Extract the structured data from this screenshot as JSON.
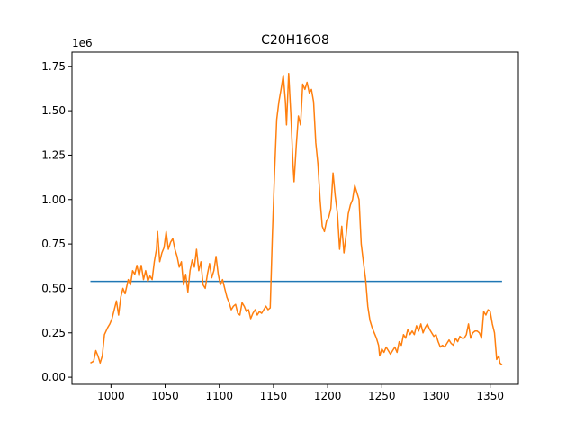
{
  "chart_data": {
    "type": "line",
    "title": "C20H16O8",
    "xlabel": "",
    "ylabel": "",
    "offset_label": "1e6",
    "xlim": [
      964,
      1376
    ],
    "ylim": [
      -0.04,
      1.83
    ],
    "y_scale_multiplier": 1000000,
    "grid": false,
    "x_ticks": [
      {
        "value": 1000,
        "label": "1000"
      },
      {
        "value": 1050,
        "label": "1050"
      },
      {
        "value": 1100,
        "label": "1100"
      },
      {
        "value": 1150,
        "label": "1150"
      },
      {
        "value": 1200,
        "label": "1200"
      },
      {
        "value": 1250,
        "label": "1250"
      },
      {
        "value": 1300,
        "label": "1300"
      },
      {
        "value": 1350,
        "label": "1350"
      }
    ],
    "y_ticks": [
      {
        "value": 0.0,
        "label": "0.00"
      },
      {
        "value": 0.25,
        "label": "0.25"
      },
      {
        "value": 0.5,
        "label": "0.50"
      },
      {
        "value": 0.75,
        "label": "0.75"
      },
      {
        "value": 1.0,
        "label": "1.00"
      },
      {
        "value": 1.25,
        "label": "1.25"
      },
      {
        "value": 1.5,
        "label": "1.50"
      },
      {
        "value": 1.75,
        "label": "1.75"
      }
    ],
    "series": [
      {
        "color": "#1f77b4",
        "points": [
          [
            981,
            0.54
          ],
          [
            1361,
            0.54
          ]
        ]
      },
      {
        "color": "#ff7f0e",
        "points": [
          [
            981,
            0.08
          ],
          [
            984,
            0.09
          ],
          [
            986,
            0.15
          ],
          [
            988,
            0.12
          ],
          [
            990,
            0.08
          ],
          [
            992,
            0.12
          ],
          [
            994,
            0.24
          ],
          [
            997,
            0.28
          ],
          [
            999,
            0.3
          ],
          [
            1001,
            0.33
          ],
          [
            1003,
            0.38
          ],
          [
            1005,
            0.43
          ],
          [
            1007,
            0.35
          ],
          [
            1009,
            0.45
          ],
          [
            1011,
            0.5
          ],
          [
            1013,
            0.47
          ],
          [
            1016,
            0.55
          ],
          [
            1018,
            0.52
          ],
          [
            1020,
            0.6
          ],
          [
            1022,
            0.58
          ],
          [
            1024,
            0.63
          ],
          [
            1026,
            0.57
          ],
          [
            1028,
            0.63
          ],
          [
            1030,
            0.55
          ],
          [
            1032,
            0.6
          ],
          [
            1034,
            0.54
          ],
          [
            1036,
            0.57
          ],
          [
            1038,
            0.55
          ],
          [
            1040,
            0.65
          ],
          [
            1042,
            0.72
          ],
          [
            1043,
            0.82
          ],
          [
            1045,
            0.65
          ],
          [
            1047,
            0.7
          ],
          [
            1049,
            0.73
          ],
          [
            1051,
            0.82
          ],
          [
            1053,
            0.72
          ],
          [
            1055,
            0.76
          ],
          [
            1057,
            0.78
          ],
          [
            1059,
            0.72
          ],
          [
            1061,
            0.68
          ],
          [
            1063,
            0.62
          ],
          [
            1065,
            0.65
          ],
          [
            1067,
            0.52
          ],
          [
            1069,
            0.58
          ],
          [
            1071,
            0.48
          ],
          [
            1073,
            0.6
          ],
          [
            1075,
            0.66
          ],
          [
            1077,
            0.62
          ],
          [
            1079,
            0.72
          ],
          [
            1081,
            0.6
          ],
          [
            1083,
            0.65
          ],
          [
            1085,
            0.52
          ],
          [
            1087,
            0.5
          ],
          [
            1089,
            0.58
          ],
          [
            1091,
            0.64
          ],
          [
            1093,
            0.56
          ],
          [
            1095,
            0.6
          ],
          [
            1097,
            0.68
          ],
          [
            1099,
            0.58
          ],
          [
            1101,
            0.52
          ],
          [
            1103,
            0.55
          ],
          [
            1105,
            0.5
          ],
          [
            1107,
            0.45
          ],
          [
            1109,
            0.42
          ],
          [
            1111,
            0.38
          ],
          [
            1113,
            0.4
          ],
          [
            1115,
            0.41
          ],
          [
            1117,
            0.36
          ],
          [
            1119,
            0.35
          ],
          [
            1121,
            0.42
          ],
          [
            1123,
            0.4
          ],
          [
            1125,
            0.37
          ],
          [
            1127,
            0.38
          ],
          [
            1129,
            0.33
          ],
          [
            1131,
            0.36
          ],
          [
            1133,
            0.38
          ],
          [
            1135,
            0.35
          ],
          [
            1137,
            0.37
          ],
          [
            1139,
            0.36
          ],
          [
            1141,
            0.38
          ],
          [
            1143,
            0.4
          ],
          [
            1145,
            0.38
          ],
          [
            1147,
            0.39
          ],
          [
            1149,
            0.8
          ],
          [
            1151,
            1.15
          ],
          [
            1153,
            1.45
          ],
          [
            1155,
            1.55
          ],
          [
            1157,
            1.62
          ],
          [
            1159,
            1.7
          ],
          [
            1161,
            1.55
          ],
          [
            1162,
            1.42
          ],
          [
            1164,
            1.71
          ],
          [
            1166,
            1.48
          ],
          [
            1168,
            1.2
          ],
          [
            1169,
            1.1
          ],
          [
            1171,
            1.3
          ],
          [
            1173,
            1.47
          ],
          [
            1175,
            1.42
          ],
          [
            1177,
            1.65
          ],
          [
            1179,
            1.62
          ],
          [
            1181,
            1.66
          ],
          [
            1183,
            1.6
          ],
          [
            1185,
            1.62
          ],
          [
            1187,
            1.55
          ],
          [
            1189,
            1.32
          ],
          [
            1191,
            1.2
          ],
          [
            1193,
            1.0
          ],
          [
            1195,
            0.85
          ],
          [
            1197,
            0.82
          ],
          [
            1199,
            0.88
          ],
          [
            1201,
            0.9
          ],
          [
            1203,
            0.95
          ],
          [
            1205,
            1.15
          ],
          [
            1207,
            1.02
          ],
          [
            1209,
            0.92
          ],
          [
            1211,
            0.72
          ],
          [
            1213,
            0.85
          ],
          [
            1215,
            0.7
          ],
          [
            1217,
            0.8
          ],
          [
            1219,
            0.92
          ],
          [
            1221,
            0.97
          ],
          [
            1223,
            1.0
          ],
          [
            1225,
            1.08
          ],
          [
            1227,
            1.04
          ],
          [
            1229,
            1.0
          ],
          [
            1231,
            0.75
          ],
          [
            1233,
            0.65
          ],
          [
            1235,
            0.55
          ],
          [
            1237,
            0.4
          ],
          [
            1239,
            0.32
          ],
          [
            1241,
            0.28
          ],
          [
            1243,
            0.25
          ],
          [
            1245,
            0.22
          ],
          [
            1247,
            0.18
          ],
          [
            1248,
            0.12
          ],
          [
            1250,
            0.16
          ],
          [
            1252,
            0.14
          ],
          [
            1254,
            0.17
          ],
          [
            1256,
            0.15
          ],
          [
            1258,
            0.13
          ],
          [
            1260,
            0.15
          ],
          [
            1262,
            0.17
          ],
          [
            1264,
            0.14
          ],
          [
            1266,
            0.2
          ],
          [
            1268,
            0.18
          ],
          [
            1270,
            0.24
          ],
          [
            1272,
            0.22
          ],
          [
            1274,
            0.27
          ],
          [
            1276,
            0.24
          ],
          [
            1278,
            0.26
          ],
          [
            1280,
            0.24
          ],
          [
            1282,
            0.29
          ],
          [
            1284,
            0.26
          ],
          [
            1286,
            0.3
          ],
          [
            1288,
            0.25
          ],
          [
            1290,
            0.28
          ],
          [
            1292,
            0.3
          ],
          [
            1294,
            0.27
          ],
          [
            1296,
            0.25
          ],
          [
            1298,
            0.23
          ],
          [
            1300,
            0.24
          ],
          [
            1302,
            0.2
          ],
          [
            1304,
            0.17
          ],
          [
            1306,
            0.18
          ],
          [
            1308,
            0.17
          ],
          [
            1310,
            0.19
          ],
          [
            1312,
            0.21
          ],
          [
            1314,
            0.19
          ],
          [
            1316,
            0.18
          ],
          [
            1318,
            0.22
          ],
          [
            1320,
            0.2
          ],
          [
            1322,
            0.23
          ],
          [
            1324,
            0.22
          ],
          [
            1326,
            0.22
          ],
          [
            1328,
            0.24
          ],
          [
            1330,
            0.3
          ],
          [
            1332,
            0.22
          ],
          [
            1334,
            0.25
          ],
          [
            1336,
            0.26
          ],
          [
            1338,
            0.26
          ],
          [
            1340,
            0.25
          ],
          [
            1342,
            0.22
          ],
          [
            1344,
            0.37
          ],
          [
            1346,
            0.35
          ],
          [
            1348,
            0.38
          ],
          [
            1350,
            0.37
          ],
          [
            1352,
            0.3
          ],
          [
            1354,
            0.25
          ],
          [
            1356,
            0.1
          ],
          [
            1358,
            0.12
          ],
          [
            1359,
            0.08
          ],
          [
            1361,
            0.07
          ]
        ]
      }
    ]
  }
}
